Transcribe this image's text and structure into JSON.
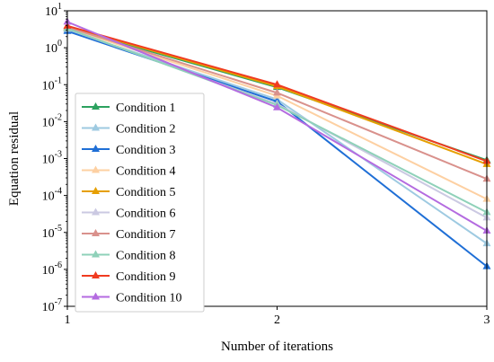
{
  "chart_data": {
    "type": "line",
    "title": "",
    "xlabel": "Number of iterations",
    "ylabel": "Equation residual",
    "xlim": [
      1,
      3
    ],
    "ylim": [
      1e-07,
      10
    ],
    "yscale": "log",
    "x": [
      1,
      2,
      3
    ],
    "x_ticks": [
      "1",
      "2",
      "3"
    ],
    "y_ticks": [
      {
        "value": 1e-07,
        "base": "10",
        "exp": "-7"
      },
      {
        "value": 1e-06,
        "base": "10",
        "exp": "-6"
      },
      {
        "value": 1e-05,
        "base": "10",
        "exp": "-5"
      },
      {
        "value": 0.0001,
        "base": "10",
        "exp": "-4"
      },
      {
        "value": 0.001,
        "base": "10",
        "exp": "-3"
      },
      {
        "value": 0.01,
        "base": "10",
        "exp": "-2"
      },
      {
        "value": 0.1,
        "base": "10",
        "exp": "-1"
      },
      {
        "value": 1,
        "base": "10",
        "exp": "0"
      },
      {
        "value": 10,
        "base": "10",
        "exp": "1"
      }
    ],
    "legend_position": "left",
    "marker": "triangle",
    "grid": false,
    "series": [
      {
        "name": "Condition 1",
        "color": "#2ca25f",
        "values": [
          3.5,
          0.085,
          0.0009
        ]
      },
      {
        "name": "Condition 2",
        "color": "#9ecae1",
        "values": [
          3.0,
          0.04,
          5e-06
        ]
      },
      {
        "name": "Condition 3",
        "color": "#1f6fd6",
        "values": [
          2.8,
          0.035,
          1.2e-06
        ]
      },
      {
        "name": "Condition 4",
        "color": "#fdd0a2",
        "values": [
          3.4,
          0.05,
          8e-05
        ]
      },
      {
        "name": "Condition 5",
        "color": "#e69f00",
        "values": [
          3.8,
          0.09,
          0.0007
        ]
      },
      {
        "name": "Condition 6",
        "color": "#cbc9e2",
        "values": [
          3.2,
          0.03,
          2.5e-05
        ]
      },
      {
        "name": "Condition 7",
        "color": "#d9918c",
        "values": [
          3.6,
          0.06,
          0.00028
        ]
      },
      {
        "name": "Condition 8",
        "color": "#8fd1b9",
        "values": [
          3.3,
          0.028,
          3.5e-05
        ]
      },
      {
        "name": "Condition 9",
        "color": "#f03b20",
        "values": [
          3.9,
          0.1,
          0.00085
        ]
      },
      {
        "name": "Condition 10",
        "color": "#b46be0",
        "values": [
          5.0,
          0.024,
          1.1e-05
        ]
      }
    ]
  }
}
